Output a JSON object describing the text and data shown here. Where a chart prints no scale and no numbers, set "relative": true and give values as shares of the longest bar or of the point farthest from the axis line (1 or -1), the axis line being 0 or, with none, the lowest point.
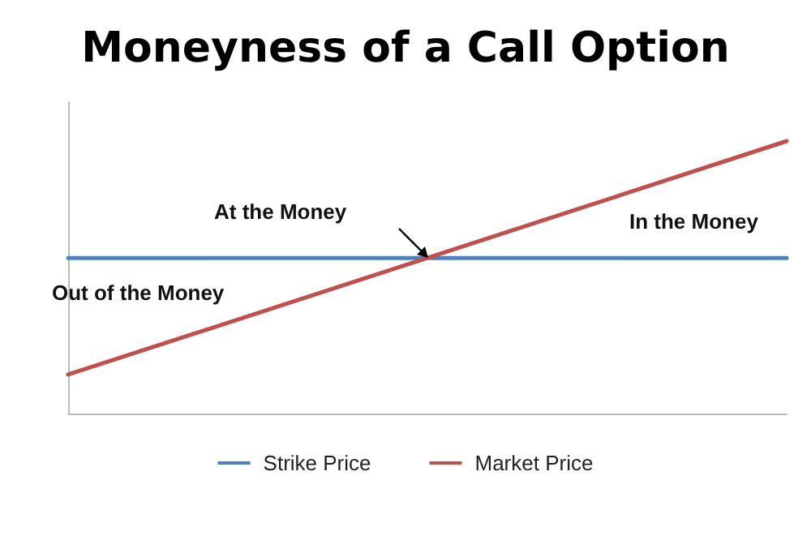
{
  "chart_data": {
    "type": "line",
    "title": "Moneyness of a Call Option",
    "relative": true,
    "categories": [
      null,
      null,
      null
    ],
    "series": [
      {
        "name": "Strike Price",
        "color": "#4f81bd",
        "values": [
          0.571,
          0.571,
          0.571
        ]
      },
      {
        "name": "Market Price",
        "color": "#c0504d",
        "values": [
          0.143,
          0.571,
          1
        ]
      }
    ],
    "annotations": [
      "At the Money",
      "In the Money",
      "Out of the Money"
    ],
    "grid": false,
    "legend": "bottom",
    "marker": "none",
    "line_style": "solid"
  }
}
